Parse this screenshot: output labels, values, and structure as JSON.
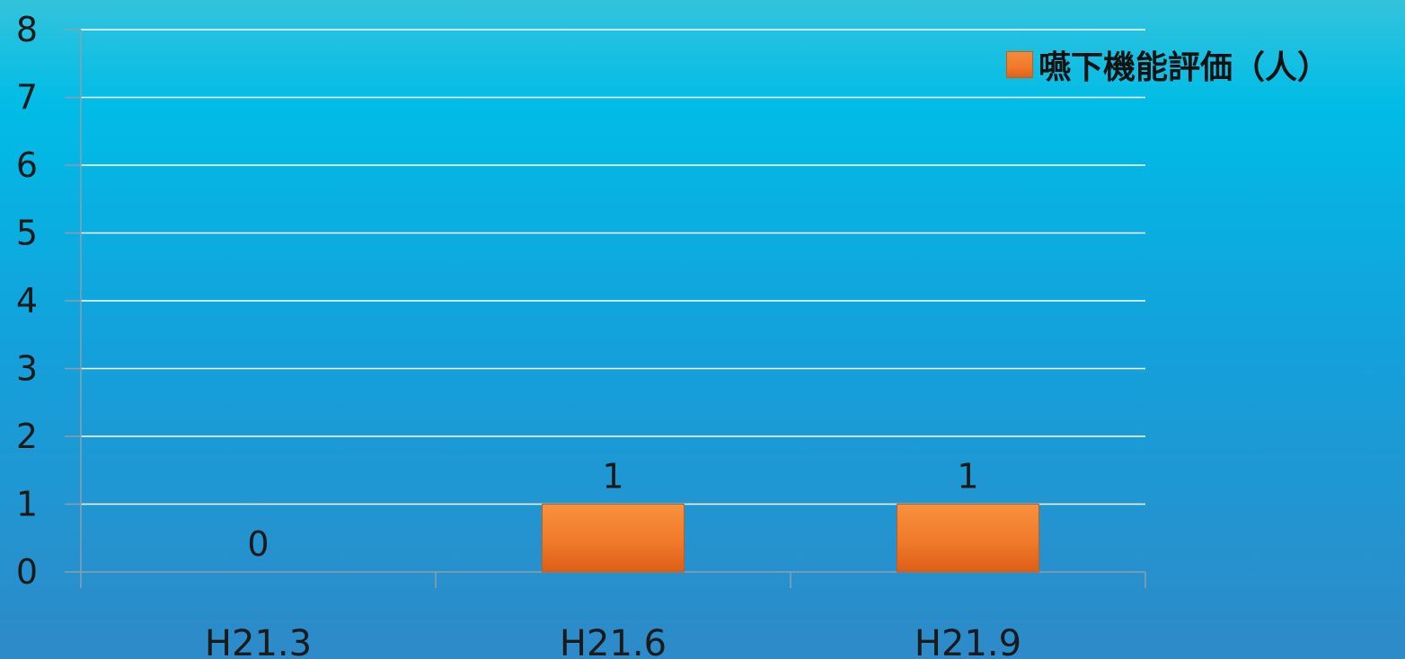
{
  "chart_data": {
    "type": "bar",
    "categories": [
      "H21.3",
      "H21.6",
      "H21.9"
    ],
    "series": [
      {
        "name": "嚥下機能評価（人）",
        "values": [
          0,
          1,
          1
        ]
      }
    ],
    "data_labels": [
      "0",
      "1",
      "1"
    ],
    "title": "",
    "xlabel": "",
    "ylabel": "",
    "ylim": [
      0,
      8
    ],
    "yticks": [
      0,
      1,
      2,
      3,
      4,
      5,
      6,
      7,
      8
    ],
    "grid": true,
    "legend_position": "top-right",
    "colors": {
      "bar": "#f07a2a",
      "grid": "#ffffff",
      "axis": "#8aa0b0",
      "background_top": "#33c3dc",
      "background_bottom": "#2e8ac8"
    }
  }
}
